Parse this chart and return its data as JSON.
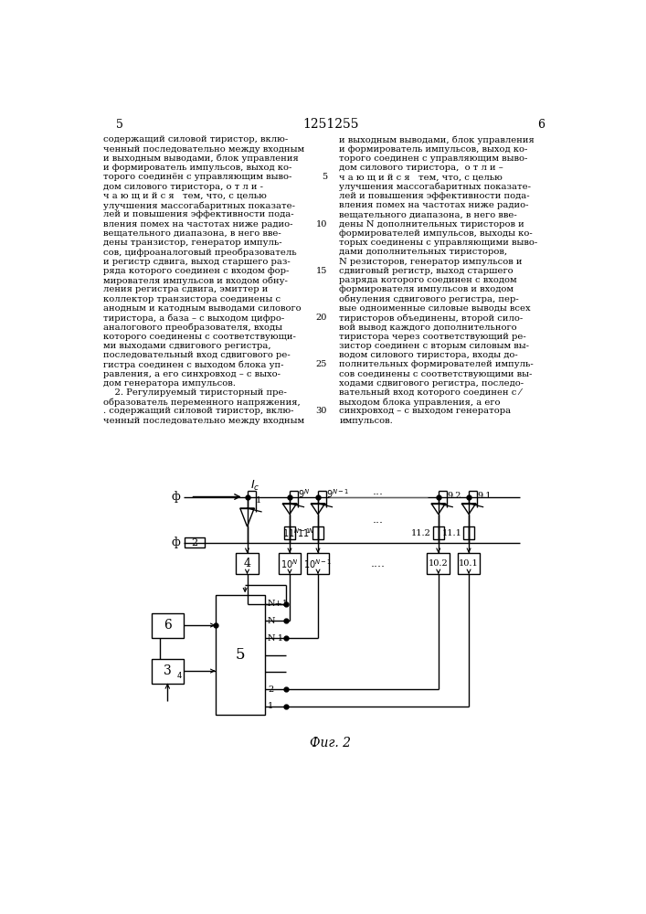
{
  "page_number_left": "5",
  "page_number_right": "6",
  "patent_number": "1251255",
  "fig_label": "Фиг. 2",
  "background_color": "#ffffff",
  "text_color": "#000000",
  "text_left_lines": [
    "содержащий силовой тиристор, вклю-",
    "ченный последовательно между входным",
    "и выходным выводами, блок управления",
    "и формирователь импульсов, выход ко-",
    "торого соединён с управляющим выво-",
    "дом силового тиристора, о т л и -",
    "ч а ю щ и й с я   тем, что, с целью",
    "улучшения массогабаритных показате-",
    "лей и повышения эффективности пода-",
    "вления помех на частотах ниже радио-",
    "вещательного диапазона, в него вве-",
    "дены транзистор, генератор импуль-",
    "сов, цифроаналоговый преобразователь",
    "и регистр сдвига, выход старшего раз-",
    "ряда которого соединен с входом фор-",
    "мирователя импульсов и входом обну-",
    "ления регистра сдвига, эмиттер и",
    "коллектор транзистора соединены с",
    "анодным и катодным выводами силового",
    "тиристора, а база – с выходом цифро-",
    "аналогового преобразователя, входы",
    "которого соединены с соответствующи-",
    "ми выходами сдвигового регистра,",
    "последовательный вход сдвигового ре-",
    "гистра соединен с выходом блока уп-",
    "равления, а его синхровход – с выхо-",
    "дом генератора импульсов.",
    "    2. Регулируемый тиристорный пре-",
    "образователь переменного напряжения,",
    ". содержащий силовой тиристор, вклю-",
    "ченный последовательно между входным"
  ],
  "text_right_lines": [
    "и выходным выводами, блок управления",
    "и формирователь импульсов, выход ко-",
    "торого соединен с управляющим выво-",
    "дом силового тиристора,  о т л и –",
    "ч а ю щ и й с я   тем, что, с целью",
    "улучшения массогабаритных показате-",
    "лей и повышения эффективности пода-",
    "вления помех на частотах ниже радио-",
    "вещательного диапазона, в него вве-",
    "дены N дополнительных тиристоров и",
    "формирователей импульсов, выходы ко-",
    "торых соединены с управляющими выво-",
    "дами дополнительных тиристоров,",
    "N резисторов, генератор импульсов и",
    "сдвиговый регистр, выход старшего",
    "разряда которого соединен с входом",
    "формирователя импульсов и входом",
    "обнуления сдвигового регистра, пер-",
    "вые одноименные силовые выводы всех",
    "тиристоров объединены, второй сило-",
    "вой вывод каждого дополнительного",
    "тиристора через соответствующий ре-",
    "зистор соединен с вторым силовым вы-",
    "водом силового тиристора, входы до-",
    "полнительных формирователей импуль-",
    "сов соединены с соответствующими вы-",
    "ходами сдвигового регистра, последо-",
    "вательный вход которого соединен с ⁄",
    "выходом блока управления, а его",
    "синхровход – с выходом генератора",
    "импульсов."
  ],
  "line_numbers": [
    "5",
    "10",
    "15",
    "20",
    "25",
    "30"
  ]
}
